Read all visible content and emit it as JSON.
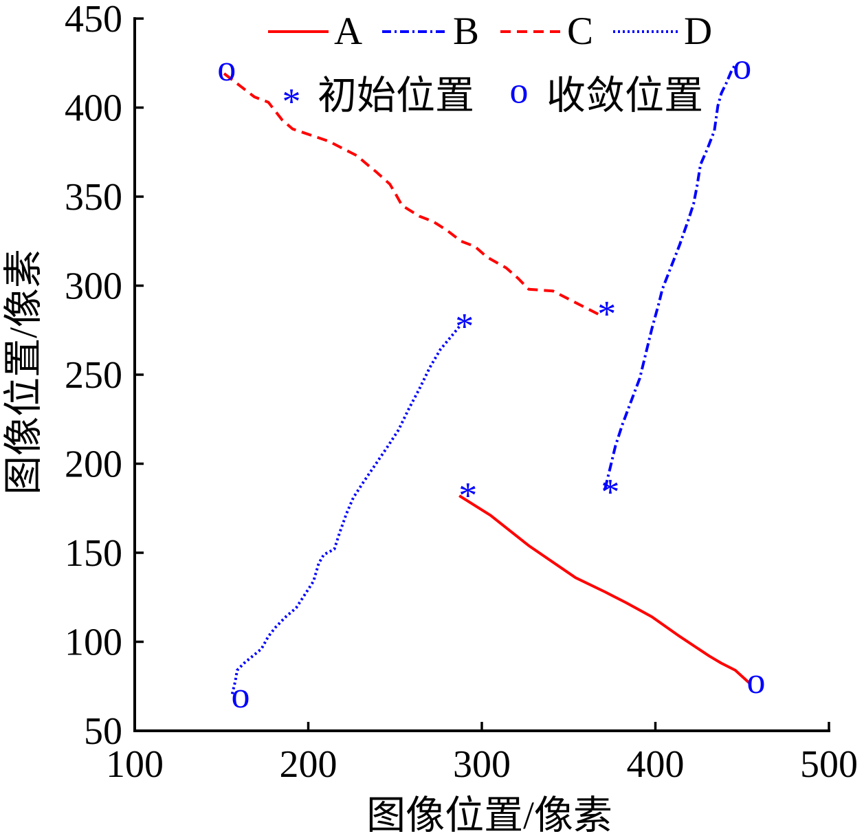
{
  "chart_data": {
    "type": "line",
    "xlabel": "图像位置/像素",
    "ylabel": "图像位置/像素",
    "xlim": [
      100,
      500
    ],
    "ylim": [
      50,
      450
    ],
    "xticks": [
      100,
      200,
      300,
      400,
      500
    ],
    "yticks": [
      50,
      100,
      150,
      200,
      250,
      300,
      350,
      400,
      450
    ],
    "grid": false,
    "legend_position": "top",
    "series": [
      {
        "name": "A",
        "color": "#ff0000",
        "line_style": "solid",
        "points": [
          [
            287,
            182
          ],
          [
            305,
            171
          ],
          [
            327,
            154
          ],
          [
            354,
            136
          ],
          [
            371,
            128
          ],
          [
            383,
            122
          ],
          [
            398,
            114
          ],
          [
            414,
            103
          ],
          [
            431,
            92
          ],
          [
            438,
            88
          ],
          [
            446,
            84
          ],
          [
            454,
            77
          ]
        ],
        "initial": [
          292,
          185
        ],
        "converged": [
          458,
          76
        ]
      },
      {
        "name": "B",
        "color": "#0000ff",
        "line_style": "dash-dot",
        "points": [
          [
            371,
            186
          ],
          [
            374,
            198
          ],
          [
            377,
            210
          ],
          [
            381,
            222
          ],
          [
            386,
            235
          ],
          [
            391,
            248
          ],
          [
            395,
            264
          ],
          [
            398,
            276
          ],
          [
            402,
            290
          ],
          [
            404,
            298
          ],
          [
            408,
            308
          ],
          [
            414,
            323
          ],
          [
            419,
            337
          ],
          [
            422,
            346
          ],
          [
            424,
            356
          ],
          [
            426,
            368
          ],
          [
            430,
            377
          ],
          [
            434,
            387
          ],
          [
            436,
            401
          ],
          [
            438,
            408
          ],
          [
            441,
            414
          ],
          [
            444,
            421
          ],
          [
            446,
            424
          ]
        ],
        "initial": [
          374,
          187
        ],
        "converged": [
          450,
          421
        ]
      },
      {
        "name": "C",
        "color": "#ff0000",
        "line_style": "dashed",
        "points": [
          [
            367,
            284
          ],
          [
            359,
            288
          ],
          [
            341,
            297
          ],
          [
            327,
            298
          ],
          [
            321,
            304
          ],
          [
            314,
            310
          ],
          [
            303,
            316
          ],
          [
            296,
            322
          ],
          [
            288,
            325
          ],
          [
            280,
            331
          ],
          [
            272,
            336
          ],
          [
            264,
            339
          ],
          [
            254,
            345
          ],
          [
            250,
            352
          ],
          [
            247,
            357
          ],
          [
            239,
            364
          ],
          [
            234,
            368
          ],
          [
            228,
            373
          ],
          [
            220,
            377
          ],
          [
            212,
            381
          ],
          [
            203,
            384
          ],
          [
            191,
            388
          ],
          [
            185,
            393
          ],
          [
            177,
            403
          ],
          [
            169,
            406
          ],
          [
            161,
            412
          ],
          [
            149,
            421
          ]
        ],
        "initial": [
          372,
          287
        ],
        "converged": [
          153,
          420
        ]
      },
      {
        "name": "D",
        "color": "#0000ff",
        "line_style": "dotted",
        "points": [
          [
            287,
            277
          ],
          [
            282,
            271
          ],
          [
            276,
            264
          ],
          [
            270,
            254
          ],
          [
            264,
            242
          ],
          [
            258,
            231
          ],
          [
            252,
            219
          ],
          [
            246,
            210
          ],
          [
            239,
            200
          ],
          [
            232,
            190
          ],
          [
            226,
            181
          ],
          [
            222,
            172
          ],
          [
            218,
            161
          ],
          [
            215,
            152
          ],
          [
            209,
            149
          ],
          [
            206,
            144
          ],
          [
            203,
            134
          ],
          [
            199,
            128
          ],
          [
            193,
            119
          ],
          [
            187,
            114
          ],
          [
            181,
            108
          ],
          [
            177,
            103
          ],
          [
            173,
            96
          ],
          [
            168,
            92
          ],
          [
            163,
            88
          ],
          [
            159,
            84
          ],
          [
            158,
            78
          ],
          [
            156,
            70
          ]
        ],
        "initial": [
          290,
          280
        ],
        "converged": [
          161,
          68
        ]
      }
    ],
    "markers": {
      "initial": {
        "symbol": "*",
        "label": "初始位置",
        "color": "#0000ff"
      },
      "converged": {
        "symbol": "o",
        "label": "收敛位置",
        "color": "#0000ff"
      }
    }
  }
}
